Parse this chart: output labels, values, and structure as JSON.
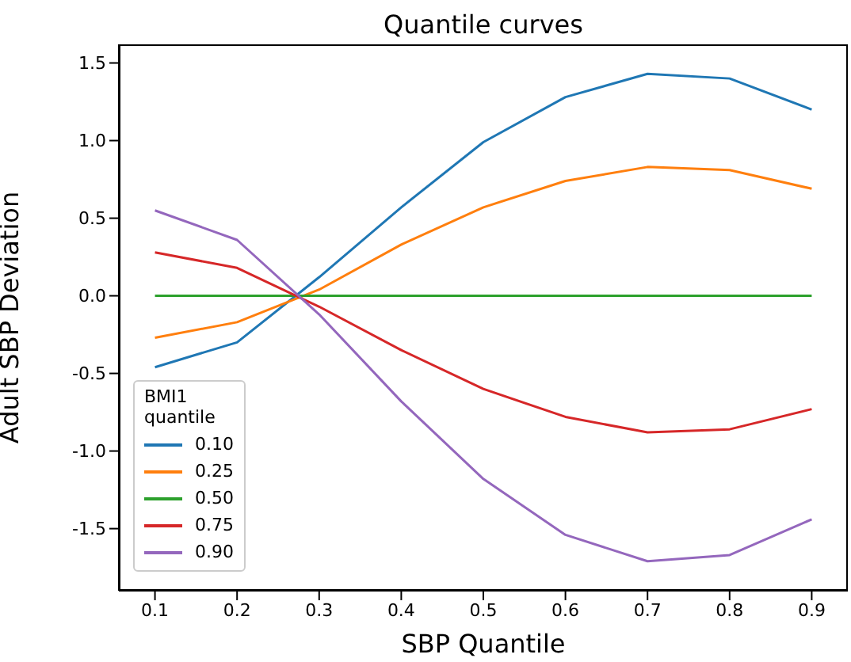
{
  "chart_data": {
    "type": "line",
    "title": "Quantile curves",
    "xlabel": "SBP Quantile",
    "ylabel": "Adult SBP Deviation",
    "legend_title": "BMI1\nquantile",
    "legend": "bottom left",
    "grid": false,
    "x": [
      0.1,
      0.2,
      0.3,
      0.4,
      0.5,
      0.6,
      0.7,
      0.8,
      0.9
    ],
    "xlim": [
      0.056,
      0.944
    ],
    "xticks": [
      0.1,
      0.2,
      0.3,
      0.4,
      0.5,
      0.6,
      0.7,
      0.8,
      0.9
    ],
    "ylim": [
      -1.9,
      1.62
    ],
    "yticks": [
      -1.5,
      {
        "value": -1,
        "label": "-1.0"
      },
      -0.5,
      {
        "value": 0,
        "label": "0.0"
      },
      0.5,
      {
        "value": 1,
        "label": "1.0"
      },
      1.5
    ],
    "series": [
      {
        "name": "0.10",
        "color": "#1f77b4",
        "values": [
          -0.46,
          -0.3,
          0.12,
          0.57,
          0.99,
          1.28,
          1.43,
          1.4,
          1.2
        ]
      },
      {
        "name": "0.25",
        "color": "#ff7f0e",
        "values": [
          -0.27,
          -0.17,
          0.04,
          0.33,
          0.57,
          0.74,
          0.83,
          0.81,
          0.69
        ]
      },
      {
        "name": "0.50",
        "color": "#2ca02c",
        "values": [
          0,
          0,
          0,
          0,
          0,
          0,
          0,
          0,
          0
        ]
      },
      {
        "name": "0.75",
        "color": "#d62728",
        "values": [
          0.28,
          0.18,
          -0.07,
          -0.35,
          -0.6,
          -0.78,
          -0.88,
          -0.86,
          -0.73
        ]
      },
      {
        "name": "0.90",
        "color": "#9467bd",
        "values": [
          0.55,
          0.36,
          -0.12,
          -0.68,
          -1.18,
          -1.54,
          -1.71,
          -1.67,
          -1.44
        ]
      }
    ]
  }
}
